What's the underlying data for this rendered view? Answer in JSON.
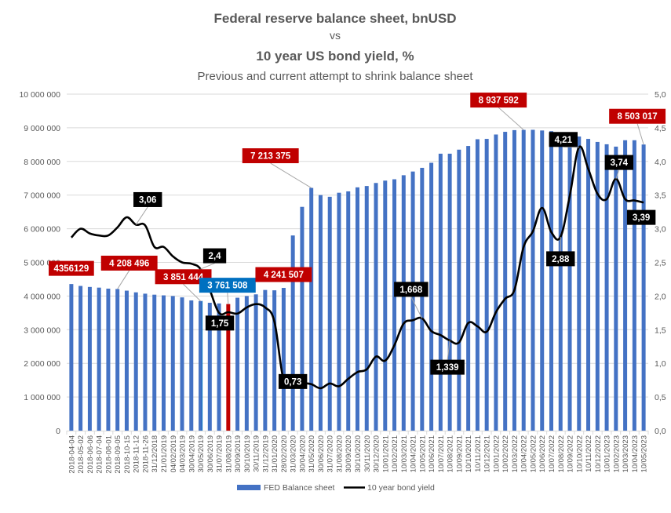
{
  "chart_data": {
    "type": "bar",
    "title": "Federal reserve balance sheet, bnUSD",
    "title_vs": "vs",
    "title2": "10 year US bond yield, %",
    "subtitle": "Previous and current attempt to shrink balance sheet",
    "xlabel": "",
    "ylabel": "",
    "ylim": [
      0,
      10000000
    ],
    "y2lim": [
      0,
      5.0
    ],
    "grid": true,
    "legend_position": "bottom",
    "y_ticks": [
      "0",
      "1 000 000",
      "2 000 000",
      "3 000 000",
      "4 000 000",
      "5 000 000",
      "6 000 000",
      "7 000 000",
      "8 000 000",
      "9 000 000",
      "10 000 000"
    ],
    "y2_ticks": [
      "0,0",
      "0,5",
      "1,0",
      "1,5",
      "2,0",
      "2,5",
      "3,0",
      "3,5",
      "4,0",
      "4,5",
      "5,0"
    ],
    "categories": [
      "2018-04-04",
      "2018-05-02",
      "2018-06-06",
      "2018-07-04",
      "2018-08-01",
      "2018-09-05",
      "2018-10-15",
      "2018-11-12",
      "2018-11-26",
      "31/12/2018",
      "21/01/2019",
      "04/02/2019",
      "04/03/2019",
      "30/04/2019",
      "30/05/2019",
      "30/06/2019",
      "31/07/2019",
      "31/08/2019",
      "30/09/2019",
      "30/10/2019",
      "30/11/2019",
      "31/12/2019",
      "31/01/2020",
      "28/02/2020",
      "31/03/2020",
      "30/04/2020",
      "31/05/2020",
      "30/06/2020",
      "31/07/2020",
      "31/08/2020",
      "30/09/2020",
      "30/10/2020",
      "30/11/2020",
      "30/12/2020",
      "10/01/2021",
      "10/02/2021",
      "10/03/2021",
      "10/04/2021",
      "10/05/2021",
      "10/06/2021",
      "10/07/2021",
      "10/08/2021",
      "10/09/2021",
      "10/10/2021",
      "10/11/2021",
      "10/12/2021",
      "10/01/2022",
      "10/02/2022",
      "10/03/2022",
      "10/04/2022",
      "10/05/2022",
      "10/06/2022",
      "10/07/2022",
      "10/08/2022",
      "10/09/2022",
      "10/10/2022",
      "10/11/2022",
      "10/12/2022",
      "10/01/2023",
      "10/02/2023",
      "10/03/2023",
      "10/04/2023",
      "10/05/2023"
    ],
    "series": [
      {
        "name": "FED Balance sheet",
        "type": "bar",
        "axis": "left",
        "color": "#4472C4",
        "values": [
          4356129,
          4300000,
          4270000,
          4250000,
          4220000,
          4208496,
          4160000,
          4110000,
          4070000,
          4040000,
          4020000,
          4000000,
          3960000,
          3870000,
          3851444,
          3800000,
          3780000,
          3761508,
          3950000,
          4000000,
          4050000,
          4180000,
          4170000,
          4241507,
          5800000,
          6650000,
          7213375,
          7000000,
          6950000,
          7070000,
          7110000,
          7230000,
          7270000,
          7360000,
          7430000,
          7470000,
          7590000,
          7700000,
          7810000,
          7960000,
          8230000,
          8230000,
          8350000,
          8460000,
          8660000,
          8670000,
          8800000,
          8880000,
          8930000,
          8937592,
          8940000,
          8920000,
          8900000,
          8860000,
          8720000,
          8740000,
          8670000,
          8580000,
          8510000,
          8440000,
          8630000,
          8630000,
          8503017
        ],
        "highlight": {
          "index": 17,
          "color": "#C00000"
        },
        "outline_highlight": {
          "index": 14,
          "color": "#0070C0"
        }
      },
      {
        "name": "10 year bond yield",
        "type": "line",
        "axis": "right",
        "color": "#000000",
        "values": [
          2.87,
          3.0,
          2.93,
          2.9,
          2.9,
          3.02,
          3.17,
          3.06,
          3.05,
          2.73,
          2.73,
          2.59,
          2.5,
          2.48,
          2.4,
          2.09,
          1.75,
          1.76,
          1.74,
          1.83,
          1.88,
          1.83,
          1.62,
          0.75,
          0.73,
          0.71,
          0.69,
          0.63,
          0.7,
          0.66,
          0.77,
          0.87,
          0.91,
          1.1,
          1.04,
          1.27,
          1.59,
          1.64,
          1.668,
          1.48,
          1.42,
          1.339,
          1.31,
          1.6,
          1.55,
          1.47,
          1.76,
          1.96,
          2.09,
          2.73,
          2.96,
          3.31,
          2.95,
          2.88,
          3.49,
          4.21,
          3.89,
          3.52,
          3.44,
          3.74,
          3.44,
          3.42,
          3.39
        ]
      }
    ],
    "annotations": [
      {
        "series": 0,
        "index": 0,
        "text": "4356129",
        "bg": "#C00000"
      },
      {
        "series": 0,
        "index": 5,
        "text": "4 208 496",
        "bg": "#C00000"
      },
      {
        "series": 0,
        "index": 14,
        "text": "3 851 444",
        "bg": "#C00000"
      },
      {
        "series": 0,
        "index": 17,
        "text": "3 761 508",
        "bg": "#0070C0"
      },
      {
        "series": 0,
        "index": 23,
        "text": "4 241 507",
        "bg": "#C00000"
      },
      {
        "series": 0,
        "index": 26,
        "text": "7 213 375",
        "bg": "#C00000"
      },
      {
        "series": 0,
        "index": 49,
        "text": "8 937 592",
        "bg": "#C00000"
      },
      {
        "series": 0,
        "index": 62,
        "text": "8 503 017",
        "bg": "#C00000"
      },
      {
        "series": 1,
        "index": 7,
        "text": "3,06",
        "bg": "#000000"
      },
      {
        "series": 1,
        "index": 14,
        "text": "2,4",
        "bg": "#000000"
      },
      {
        "series": 1,
        "index": 16,
        "text": "1,75",
        "bg": "#000000"
      },
      {
        "series": 1,
        "index": 24,
        "text": "0,73",
        "bg": "#000000"
      },
      {
        "series": 1,
        "index": 38,
        "text": "1,668",
        "bg": "#000000"
      },
      {
        "series": 1,
        "index": 41,
        "text": "1,339",
        "bg": "#000000"
      },
      {
        "series": 1,
        "index": 53,
        "text": "2,88",
        "bg": "#000000"
      },
      {
        "series": 1,
        "index": 55,
        "text": "4,21",
        "bg": "#000000"
      },
      {
        "series": 1,
        "index": 59,
        "text": "3,74",
        "bg": "#000000"
      },
      {
        "series": 1,
        "index": 62,
        "text": "3,39",
        "bg": "#000000"
      }
    ],
    "legend": [
      "FED Balance sheet",
      "10 year bond yield"
    ]
  }
}
